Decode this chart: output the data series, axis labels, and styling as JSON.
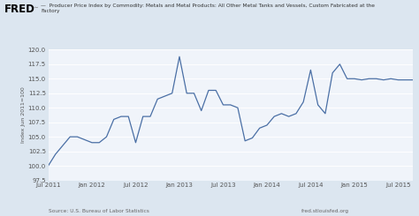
{
  "title_legend": "Producer Price Index by Commodity: Metals and Metal Products: All Other Metal Tanks and Vessels, Custom Fabricated at the\nFactory",
  "ylabel": "Index Jun 2011=100",
  "source_left": "Source: U.S. Bureau of Labor Statistics",
  "source_right": "fred.stlouisfed.org",
  "line_color": "#4a6fa5",
  "bg_color": "#dce6f0",
  "plot_bg_color": "#f0f4fa",
  "ylim": [
    97.5,
    120.0
  ],
  "yticks": [
    97.5,
    100.0,
    102.5,
    105.0,
    107.5,
    110.0,
    112.5,
    115.0,
    117.5,
    120.0
  ],
  "values": [
    100.0,
    102.0,
    103.5,
    105.0,
    105.0,
    104.5,
    104.0,
    104.0,
    105.0,
    108.0,
    108.5,
    108.5,
    104.0,
    108.5,
    108.5,
    111.5,
    112.0,
    112.5,
    118.8,
    112.5,
    112.5,
    109.5,
    113.0,
    113.0,
    110.5,
    110.5,
    110.0,
    104.3,
    104.8,
    106.5,
    107.0,
    108.5,
    109.0,
    108.5,
    109.0,
    111.0,
    116.5,
    110.5,
    109.0,
    116.0,
    117.5,
    115.0,
    115.0,
    114.8,
    115.0,
    115.0,
    114.8,
    115.0,
    114.8,
    114.8,
    114.8
  ],
  "xtick_labels": [
    "Jul 2011",
    "Jan 2012",
    "Jul 2012",
    "Jan 2013",
    "Jul 2013",
    "Jan 2014",
    "Jul 2014",
    "Jan 2015",
    "Jul 2015"
  ],
  "xtick_positions": [
    0,
    6,
    12,
    18,
    24,
    30,
    36,
    42,
    48
  ]
}
